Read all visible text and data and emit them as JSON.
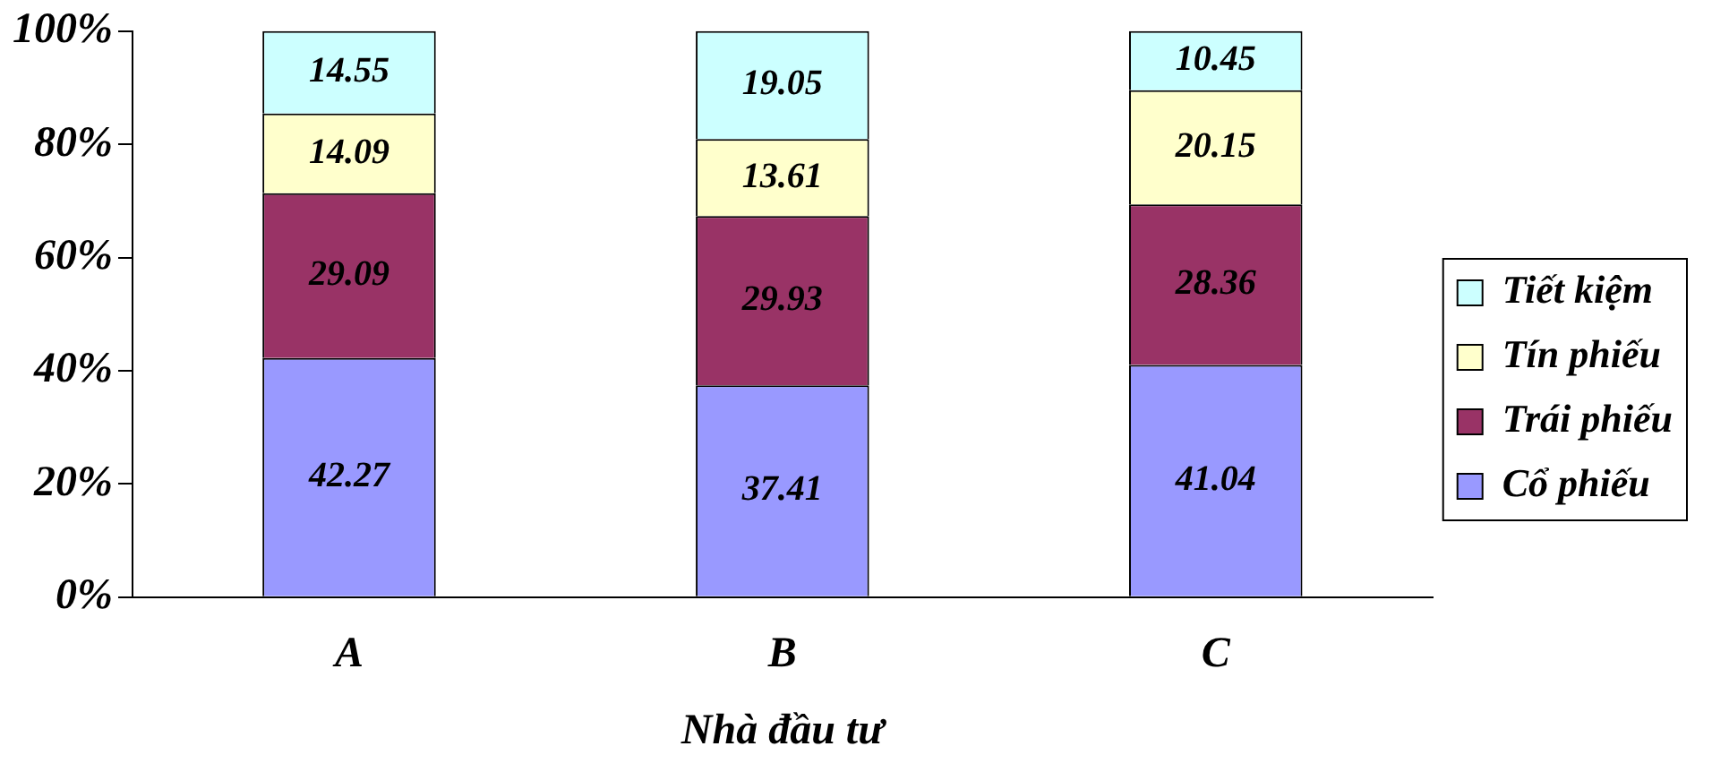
{
  "chart_data": {
    "type": "bar",
    "stacked": true,
    "xlabel": "Nhà đầu tư",
    "categories": [
      "A",
      "B",
      "C"
    ],
    "series": [
      {
        "name": "Cổ phiếu",
        "color": "#9999ff",
        "values": [
          42.27,
          37.41,
          41.04
        ]
      },
      {
        "name": "Trái phiếu",
        "color": "#993366",
        "values": [
          29.09,
          29.93,
          28.36
        ]
      },
      {
        "name": "Tín phiếu",
        "color": "#ffffcc",
        "values": [
          14.09,
          13.61,
          20.15
        ]
      },
      {
        "name": "Tiết kiệm",
        "color": "#ccffff",
        "values": [
          14.55,
          19.05,
          10.45
        ]
      }
    ],
    "ylim": [
      0,
      100
    ],
    "yticks": [
      {
        "value": 0,
        "label": "0%"
      },
      {
        "value": 20,
        "label": "20%"
      },
      {
        "value": 40,
        "label": "40%"
      },
      {
        "value": 60,
        "label": "60%"
      },
      {
        "value": 80,
        "label": "80%"
      },
      {
        "value": 100,
        "label": "100%"
      }
    ],
    "data_labels": true,
    "grid": false,
    "legend": "right"
  }
}
